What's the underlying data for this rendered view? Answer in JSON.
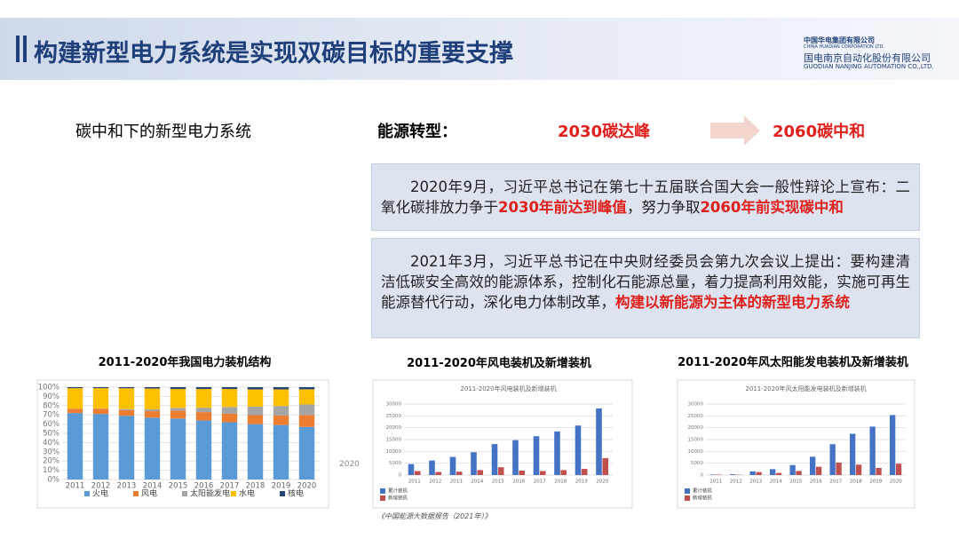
{
  "header": {
    "title": "构建新型电力系统是实现双碳目标的重要支撑",
    "logo": [
      "中国华电集团有限公司",
      "CHINA HUADIAN CORPORATION LTD.",
      "国电南京自动化股份有限公司",
      "GUODIAN NANJING AUTOMATION CO.,LTD."
    ]
  },
  "left_subtitle": "碳中和下的新型电力系统",
  "transition": {
    "label": "能源转型：",
    "from": "2030碳达峰",
    "to": "2060碳中和"
  },
  "boxes": [
    {
      "parts": [
        {
          "text": "2020年9月，习近平总书记在第七十五届联合国大会一般性辩论上宣布：二氧化碳排放力争于",
          "red": false
        },
        {
          "text": "2030年前达到峰值",
          "red": true
        },
        {
          "text": "，努力争取",
          "red": false
        },
        {
          "text": "2060年前实现碳中和",
          "red": true
        }
      ]
    },
    {
      "parts": [
        {
          "text": "2021年3月，习近平总书记在中央财经委员会第九次会议上提出：要构建清洁低碳安全高效的能源体系，控制化石能源总量，着力提高利用效能，实施可再生能源替代行动，深化电力体制改革，",
          "red": false
        },
        {
          "text": "构建以新能源为主体的新型电力系统",
          "red": true
        }
      ]
    }
  ],
  "stray_label": "2020",
  "source": "《中国能源大数据报告（2021年）》",
  "charts": [
    {
      "type": "stacked_bar",
      "title": "2011-2020年我国电力装机结构",
      "categories": [
        "2011",
        "2012",
        "2013",
        "2014",
        "2015",
        "2016",
        "2017",
        "2018",
        "2019",
        "2020"
      ],
      "series": [
        {
          "name": "火电",
          "color": "#5b9bd5",
          "values": [
            72,
            71,
            69,
            67,
            66,
            64,
            62,
            60,
            59,
            57
          ]
        },
        {
          "name": "风电",
          "color": "#ed7d31",
          "values": [
            4.5,
            5.7,
            6.1,
            7,
            8.6,
            9,
            9.2,
            9.7,
            10.4,
            12.8
          ]
        },
        {
          "name": "太阳能发电",
          "color": "#a5a5a5",
          "values": [
            0.2,
            0.3,
            1.2,
            2,
            3,
            4.7,
            7.3,
            9.2,
            10.2,
            11.5
          ]
        },
        {
          "name": "水电",
          "color": "#ffc000",
          "values": [
            22.2,
            21.9,
            22.5,
            22.5,
            20.4,
            20.3,
            19.5,
            18.7,
            18,
            16.4
          ]
        },
        {
          "name": "核电",
          "color": "#264478",
          "values": [
            1.1,
            1.1,
            1.2,
            1.5,
            2,
            2,
            2,
            2.4,
            2.4,
            2.3
          ]
        }
      ],
      "ylim": [
        0,
        100
      ],
      "yticks": [
        {
          "value": 0,
          "label": "0%"
        },
        {
          "value": 10,
          "label": "10%"
        },
        {
          "value": 20,
          "label": "20%"
        },
        {
          "value": 30,
          "label": "30%"
        },
        {
          "value": 40,
          "label": "40%"
        },
        {
          "value": 50,
          "label": "50%"
        },
        {
          "value": 60,
          "label": "60%"
        },
        {
          "value": 70,
          "label": "70%"
        },
        {
          "value": 80,
          "label": "80%"
        },
        {
          "value": 90,
          "label": "90%"
        },
        {
          "value": 100,
          "label": "100%"
        }
      ],
      "grid": true
    },
    {
      "type": "grouped_bar",
      "title": "2011-2020年风电装机及新增装机",
      "inner_title": "2011-2020年风电装机及新增装机",
      "categories": [
        "2011",
        "2012",
        "2013",
        "2014",
        "2015",
        "2016",
        "2017",
        "2018",
        "2019",
        "2020"
      ],
      "series": [
        {
          "name": "累计装机",
          "color": "#4472c4",
          "values": [
            4623,
            6142,
            7652,
            9657,
            13075,
            14747,
            16400,
            18427,
            20915,
            28153
          ]
        },
        {
          "name": "新增装机",
          "color": "#c0504d",
          "values": [
            1700,
            1300,
            1450,
            2100,
            3300,
            1900,
            1720,
            2100,
            2600,
            7167
          ]
        }
      ],
      "ylim": [
        0,
        30000
      ],
      "yticks": [
        0,
        5000,
        10000,
        15000,
        20000,
        25000,
        30000
      ],
      "grid": true
    },
    {
      "type": "grouped_bar",
      "title": "2011-2020年风太阳能发电装机及新增装机",
      "inner_title": "2011-2020年风太阳能发电装机及新增装机",
      "categories": [
        "2011",
        "2012",
        "2013",
        "2014",
        "2015",
        "2016",
        "2017",
        "2018",
        "2019",
        "2020"
      ],
      "series": [
        {
          "name": "累计装机",
          "color": "#4472c4",
          "values": [
            212,
            341,
            1589,
            2486,
            4218,
            7742,
            13042,
            17433,
            20468,
            25343
          ]
        },
        {
          "name": "新增装机",
          "color": "#c0504d",
          "values": [
            200,
            130,
            1250,
            900,
            1730,
            3500,
            5300,
            4400,
            3000,
            4800
          ]
        }
      ],
      "ylim": [
        0,
        30000
      ],
      "yticks": [
        0,
        5000,
        10000,
        15000,
        20000,
        25000,
        30000
      ],
      "grid": true
    }
  ]
}
